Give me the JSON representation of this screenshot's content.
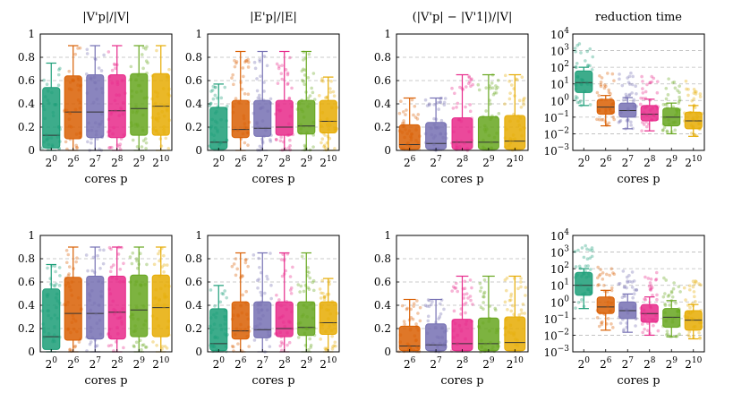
{
  "colors": {
    "c0": "#1b9e77",
    "c6": "#d95f02",
    "c7": "#7570b3",
    "c8": "#e7298a",
    "c9": "#66a61e",
    "c10": "#e6ab02",
    "grid": "#bbbbbb"
  },
  "chart_data": [
    {
      "type": "box",
      "title": "|V'p|/|V|",
      "xlabel": "cores p",
      "ylim": [
        0,
        1
      ],
      "yticks": [
        "0",
        "0.2",
        "0.4",
        "0.6",
        "0.8",
        "1"
      ],
      "categories": [
        {
          "base": "2",
          "exp": "0",
          "color": "c0",
          "min": 0,
          "q1": 0.02,
          "median": 0.13,
          "q3": 0.54,
          "max": 0.75
        },
        {
          "base": "2",
          "exp": "6",
          "color": "c6",
          "min": 0,
          "q1": 0.1,
          "median": 0.33,
          "q3": 0.64,
          "max": 0.9
        },
        {
          "base": "2",
          "exp": "7",
          "color": "c7",
          "min": 0,
          "q1": 0.11,
          "median": 0.33,
          "q3": 0.65,
          "max": 0.9
        },
        {
          "base": "2",
          "exp": "8",
          "color": "c8",
          "min": 0,
          "q1": 0.11,
          "median": 0.34,
          "q3": 0.65,
          "max": 0.9
        },
        {
          "base": "2",
          "exp": "9",
          "color": "c9",
          "min": 0,
          "q1": 0.13,
          "median": 0.36,
          "q3": 0.66,
          "max": 0.9
        },
        {
          "base": "2",
          "exp": "10",
          "color": "c10",
          "min": 0,
          "q1": 0.13,
          "median": 0.38,
          "q3": 0.66,
          "max": 0.9
        }
      ]
    },
    {
      "type": "box",
      "title": "|E'p|/|E|",
      "xlabel": "cores p",
      "ylim": [
        0,
        1
      ],
      "yticks": [
        "0",
        "0.2",
        "0.4",
        "0.6",
        "0.8",
        "1"
      ],
      "categories": [
        {
          "base": "2",
          "exp": "0",
          "color": "c0",
          "min": 0,
          "q1": 0.01,
          "median": 0.07,
          "q3": 0.37,
          "max": 0.57
        },
        {
          "base": "2",
          "exp": "6",
          "color": "c6",
          "min": 0,
          "q1": 0.11,
          "median": 0.18,
          "q3": 0.43,
          "max": 0.85
        },
        {
          "base": "2",
          "exp": "7",
          "color": "c7",
          "min": 0,
          "q1": 0.12,
          "median": 0.19,
          "q3": 0.43,
          "max": 0.85
        },
        {
          "base": "2",
          "exp": "8",
          "color": "c8",
          "min": 0,
          "q1": 0.13,
          "median": 0.2,
          "q3": 0.43,
          "max": 0.85
        },
        {
          "base": "2",
          "exp": "9",
          "color": "c9",
          "min": 0,
          "q1": 0.14,
          "median": 0.21,
          "q3": 0.43,
          "max": 0.85
        },
        {
          "base": "2",
          "exp": "10",
          "color": "c10",
          "min": 0,
          "q1": 0.15,
          "median": 0.25,
          "q3": 0.43,
          "max": 0.63
        }
      ]
    },
    {
      "type": "box",
      "title": "(|V'p| − |V'1|)/|V|",
      "xlabel": "cores p",
      "ylim": [
        0,
        1
      ],
      "yticks": [
        "0",
        "0.2",
        "0.4",
        "0.6",
        "0.8",
        "1"
      ],
      "categories": [
        {
          "base": "2",
          "exp": "6",
          "color": "c6",
          "min": 0,
          "q1": 0.01,
          "median": 0.05,
          "q3": 0.22,
          "max": 0.45
        },
        {
          "base": "2",
          "exp": "7",
          "color": "c7",
          "min": 0,
          "q1": 0.01,
          "median": 0.06,
          "q3": 0.24,
          "max": 0.45
        },
        {
          "base": "2",
          "exp": "8",
          "color": "c8",
          "min": 0,
          "q1": 0.01,
          "median": 0.07,
          "q3": 0.28,
          "max": 0.65
        },
        {
          "base": "2",
          "exp": "9",
          "color": "c9",
          "min": 0,
          "q1": 0.01,
          "median": 0.07,
          "q3": 0.29,
          "max": 0.65
        },
        {
          "base": "2",
          "exp": "10",
          "color": "c10",
          "min": 0,
          "q1": 0.01,
          "median": 0.08,
          "q3": 0.3,
          "max": 0.65
        }
      ]
    },
    {
      "type": "box",
      "scale": "log",
      "title": "reduction time",
      "xlabel": "cores p",
      "ylim": [
        -3,
        4
      ],
      "yticks": [
        {
          "base": "10",
          "exp": "4"
        },
        {
          "base": "10",
          "exp": "3"
        },
        {
          "base": "10",
          "exp": "2"
        },
        {
          "base": "10",
          "exp": "1"
        },
        {
          "base": "10",
          "exp": "0"
        },
        {
          "base": "10",
          "exp": "−1"
        },
        {
          "base": "10",
          "exp": "−2"
        },
        {
          "base": "10",
          "exp": "−3"
        }
      ],
      "categories": [
        {
          "base": "2",
          "exp": "0",
          "color": "c0",
          "min": 0.5,
          "q1": 3,
          "median": 12,
          "q3": 60,
          "max": 100
        },
        {
          "base": "2",
          "exp": "6",
          "color": "c6",
          "min": 0.03,
          "q1": 0.15,
          "median": 0.4,
          "q3": 1.2,
          "max": 2
        },
        {
          "base": "2",
          "exp": "7",
          "color": "c7",
          "min": 0.02,
          "q1": 0.1,
          "median": 0.25,
          "q3": 0.7,
          "max": 1.5
        },
        {
          "base": "2",
          "exp": "8",
          "color": "c8",
          "min": 0.015,
          "q1": 0.06,
          "median": 0.15,
          "q3": 0.5,
          "max": 1.2
        },
        {
          "base": "2",
          "exp": "9",
          "color": "c9",
          "min": 0.01,
          "q1": 0.03,
          "median": 0.1,
          "q3": 0.35,
          "max": 0.7
        },
        {
          "base": "2",
          "exp": "10",
          "color": "c10",
          "min": 0.007,
          "q1": 0.02,
          "median": 0.06,
          "q3": 0.2,
          "max": 0.5
        }
      ]
    },
    {
      "type": "box",
      "title": "",
      "xlabel": "cores p",
      "ylim": [
        0,
        1
      ],
      "yticks": [
        "0",
        "0.2",
        "0.4",
        "0.6",
        "0.8",
        "1"
      ],
      "categories": [
        {
          "base": "2",
          "exp": "0",
          "color": "c0",
          "min": 0,
          "q1": 0.02,
          "median": 0.13,
          "q3": 0.54,
          "max": 0.75
        },
        {
          "base": "2",
          "exp": "6",
          "color": "c6",
          "min": 0,
          "q1": 0.1,
          "median": 0.33,
          "q3": 0.64,
          "max": 0.9
        },
        {
          "base": "2",
          "exp": "7",
          "color": "c7",
          "min": 0,
          "q1": 0.11,
          "median": 0.33,
          "q3": 0.65,
          "max": 0.9
        },
        {
          "base": "2",
          "exp": "8",
          "color": "c8",
          "min": 0,
          "q1": 0.11,
          "median": 0.34,
          "q3": 0.65,
          "max": 0.9
        },
        {
          "base": "2",
          "exp": "9",
          "color": "c9",
          "min": 0,
          "q1": 0.13,
          "median": 0.36,
          "q3": 0.66,
          "max": 0.9
        },
        {
          "base": "2",
          "exp": "10",
          "color": "c10",
          "min": 0,
          "q1": 0.13,
          "median": 0.38,
          "q3": 0.66,
          "max": 0.9
        }
      ]
    },
    {
      "type": "box",
      "title": "",
      "xlabel": "cores p",
      "ylim": [
        0,
        1
      ],
      "yticks": [
        "0",
        "0.2",
        "0.4",
        "0.6",
        "0.8",
        "1"
      ],
      "categories": [
        {
          "base": "2",
          "exp": "0",
          "color": "c0",
          "min": 0,
          "q1": 0.01,
          "median": 0.07,
          "q3": 0.37,
          "max": 0.57
        },
        {
          "base": "2",
          "exp": "6",
          "color": "c6",
          "min": 0,
          "q1": 0.11,
          "median": 0.18,
          "q3": 0.43,
          "max": 0.85
        },
        {
          "base": "2",
          "exp": "7",
          "color": "c7",
          "min": 0,
          "q1": 0.12,
          "median": 0.19,
          "q3": 0.43,
          "max": 0.85
        },
        {
          "base": "2",
          "exp": "8",
          "color": "c8",
          "min": 0,
          "q1": 0.13,
          "median": 0.2,
          "q3": 0.43,
          "max": 0.85
        },
        {
          "base": "2",
          "exp": "9",
          "color": "c9",
          "min": 0,
          "q1": 0.14,
          "median": 0.21,
          "q3": 0.43,
          "max": 0.85
        },
        {
          "base": "2",
          "exp": "10",
          "color": "c10",
          "min": 0,
          "q1": 0.15,
          "median": 0.25,
          "q3": 0.43,
          "max": 0.63
        }
      ]
    },
    {
      "type": "box",
      "title": "",
      "xlabel": "cores p",
      "ylim": [
        0,
        1
      ],
      "yticks": [
        "0",
        "0.2",
        "0.4",
        "0.6",
        "0.8",
        "1"
      ],
      "categories": [
        {
          "base": "2",
          "exp": "6",
          "color": "c6",
          "min": 0,
          "q1": 0.01,
          "median": 0.05,
          "q3": 0.22,
          "max": 0.45
        },
        {
          "base": "2",
          "exp": "7",
          "color": "c7",
          "min": 0,
          "q1": 0.01,
          "median": 0.06,
          "q3": 0.24,
          "max": 0.45
        },
        {
          "base": "2",
          "exp": "8",
          "color": "c8",
          "min": 0,
          "q1": 0.01,
          "median": 0.07,
          "q3": 0.28,
          "max": 0.65
        },
        {
          "base": "2",
          "exp": "9",
          "color": "c9",
          "min": 0,
          "q1": 0.01,
          "median": 0.07,
          "q3": 0.29,
          "max": 0.65
        },
        {
          "base": "2",
          "exp": "10",
          "color": "c10",
          "min": 0,
          "q1": 0.01,
          "median": 0.08,
          "q3": 0.3,
          "max": 0.65
        }
      ]
    },
    {
      "type": "box",
      "scale": "log",
      "title": "",
      "xlabel": "cores p",
      "ylim": [
        -3,
        4
      ],
      "yticks": [
        {
          "base": "10",
          "exp": "4"
        },
        {
          "base": "10",
          "exp": "3"
        },
        {
          "base": "10",
          "exp": "2"
        },
        {
          "base": "10",
          "exp": "1"
        },
        {
          "base": "10",
          "exp": "0"
        },
        {
          "base": "10",
          "exp": "−1"
        },
        {
          "base": "10",
          "exp": "−2"
        },
        {
          "base": "10",
          "exp": "−3"
        }
      ],
      "categories": [
        {
          "base": "2",
          "exp": "0",
          "color": "c0",
          "min": 0.4,
          "q1": 2.5,
          "median": 10,
          "q3": 60,
          "max": 100
        },
        {
          "base": "2",
          "exp": "6",
          "color": "c6",
          "min": 0.02,
          "q1": 0.2,
          "median": 0.5,
          "q3": 2,
          "max": 5
        },
        {
          "base": "2",
          "exp": "7",
          "color": "c7",
          "min": 0.015,
          "q1": 0.1,
          "median": 0.3,
          "q3": 1,
          "max": 3
        },
        {
          "base": "2",
          "exp": "8",
          "color": "c8",
          "min": 0.01,
          "q1": 0.06,
          "median": 0.2,
          "q3": 0.7,
          "max": 2
        },
        {
          "base": "2",
          "exp": "9",
          "color": "c9",
          "min": 0.008,
          "q1": 0.03,
          "median": 0.12,
          "q3": 0.4,
          "max": 1.2
        },
        {
          "base": "2",
          "exp": "10",
          "color": "c10",
          "min": 0.006,
          "q1": 0.02,
          "median": 0.08,
          "q3": 0.3,
          "max": 0.7
        }
      ]
    }
  ]
}
